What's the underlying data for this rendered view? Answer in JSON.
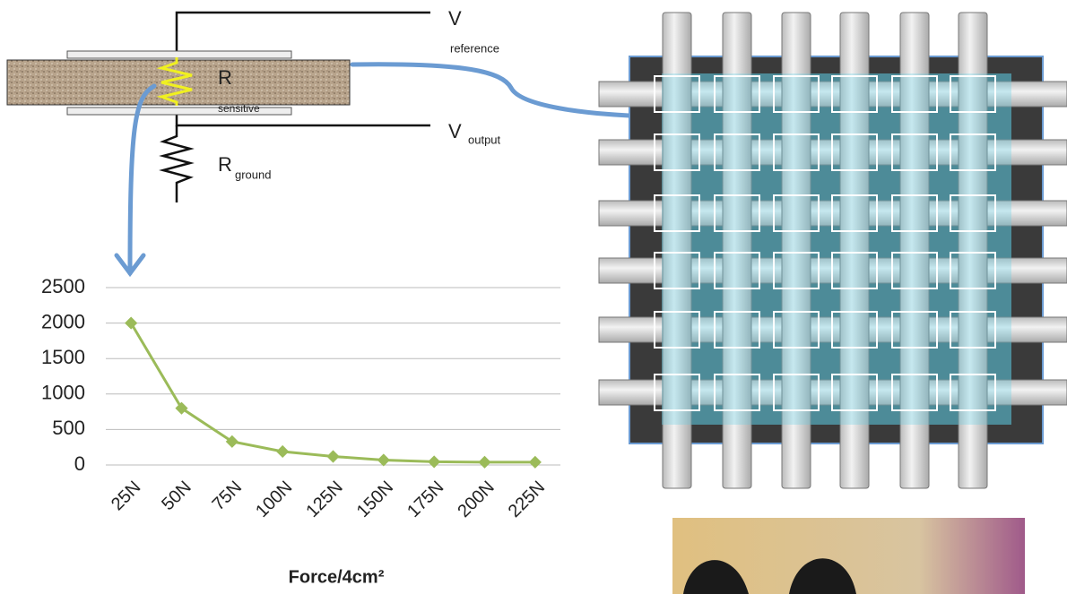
{
  "diagram": {
    "v_reference": {
      "symbol": "V",
      "subscript": "reference"
    },
    "r_sensitive": {
      "symbol": "R",
      "subscript": "sensitive"
    },
    "v_output": {
      "symbol": "V",
      "subscript": "output"
    },
    "r_ground": {
      "symbol": "R",
      "subscript": "ground"
    }
  },
  "chart_data": {
    "type": "line",
    "x_label": "Force/4cm²",
    "categories": [
      "25N",
      "50N",
      "75N",
      "100N",
      "125N",
      "150N",
      "175N",
      "200N",
      "225N"
    ],
    "values": [
      2000,
      800,
      330,
      190,
      120,
      70,
      45,
      40,
      40
    ],
    "color": "#9bbb59",
    "ylim": [
      0,
      2500
    ],
    "yticks": [
      0,
      500,
      1000,
      1500,
      2000,
      2500
    ],
    "grid": true
  }
}
